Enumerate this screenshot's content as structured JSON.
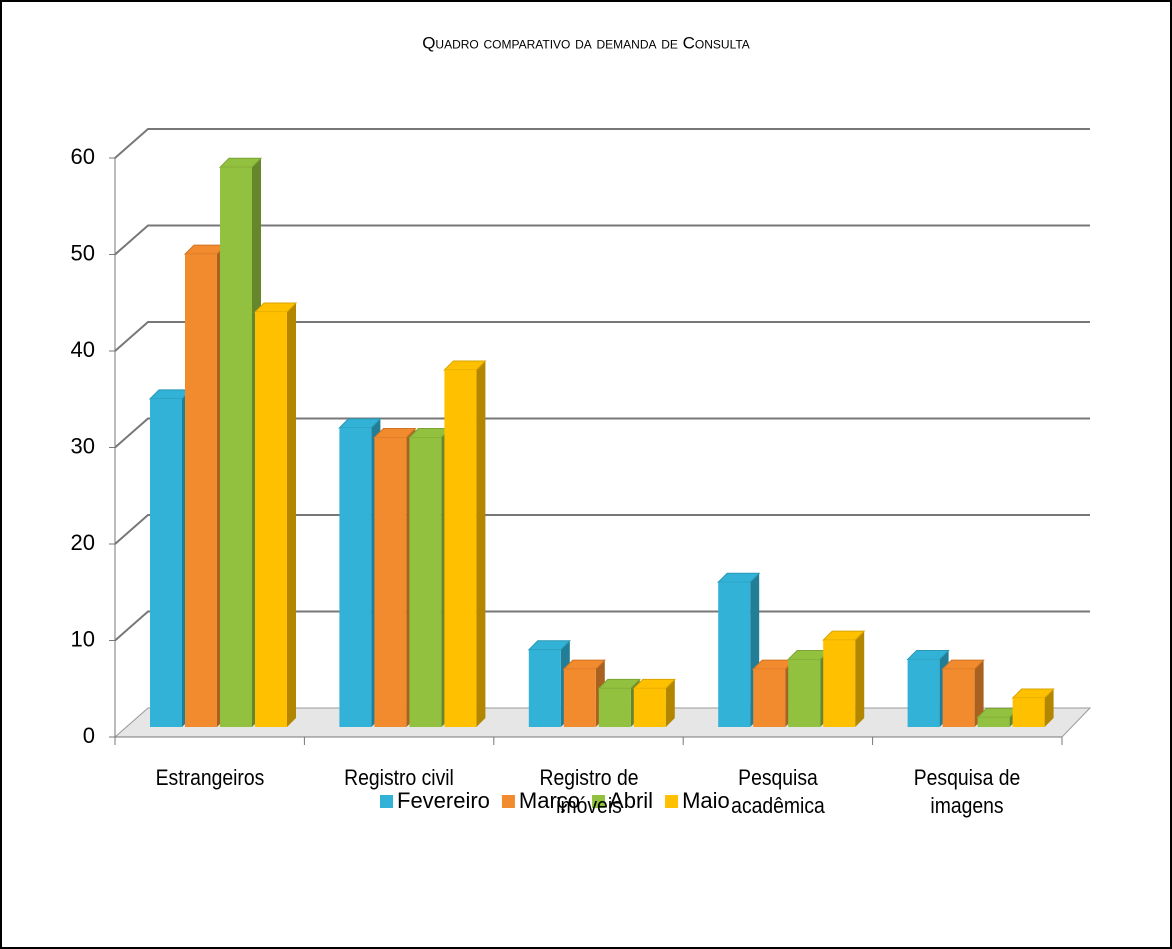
{
  "chart_data": {
    "type": "bar3d",
    "title": "Quadro comparativo da demanda de Consulta",
    "categories": [
      "Estrangeiros",
      "Registro civil",
      "Registro de imóveis",
      "Pesquisa acadêmica",
      "Pesquisa de imagens"
    ],
    "series": [
      {
        "name": "Fevereiro",
        "color": "#31b2d6",
        "values": [
          34,
          31,
          8,
          15,
          7
        ]
      },
      {
        "name": "Março",
        "color": "#f28a2e",
        "values": [
          49,
          30,
          6,
          6,
          6
        ]
      },
      {
        "name": "Abril",
        "color": "#92c03f",
        "values": [
          58,
          30,
          4,
          7,
          1
        ]
      },
      {
        "name": "Maio",
        "color": "#ffc000",
        "values": [
          43,
          37,
          4,
          9,
          3
        ]
      }
    ],
    "ylim": [
      0,
      60
    ],
    "yticks": [
      0,
      10,
      20,
      30,
      40,
      50,
      60
    ],
    "grid": true,
    "legend": "bottom"
  }
}
